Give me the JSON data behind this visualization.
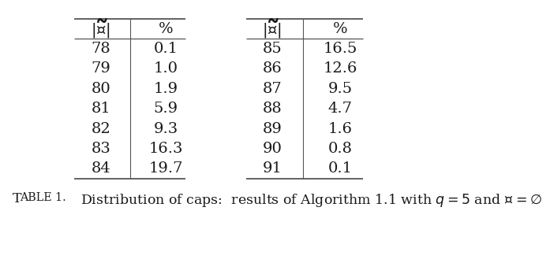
{
  "left_table": {
    "col1": [
      "78",
      "79",
      "80",
      "81",
      "82",
      "83",
      "84"
    ],
    "col2": [
      "0.1",
      "1.0",
      "1.9",
      "5.9",
      "9.3",
      "16.3",
      "19.7"
    ]
  },
  "right_table": {
    "col1": [
      "85",
      "86",
      "87",
      "88",
      "89",
      "90",
      "91"
    ],
    "col2": [
      "16.5",
      "12.6",
      "9.5",
      "4.7",
      "1.6",
      "0.8",
      "0.1"
    ]
  },
  "col1_header": "$|\\widetilde{\\mathcal{C}}|$",
  "col2_header": "%",
  "caption_prefix": "Table 1.",
  "caption_body": "  Distribution of caps:  results of Algorithm 1.1 with $q = 5$ and $\\mathcal{C} = \\emptyset$",
  "bg_color": "#ffffff",
  "text_color": "#1a1a1a",
  "line_color": "#555555",
  "font_size": 14,
  "caption_font_size": 12.5
}
